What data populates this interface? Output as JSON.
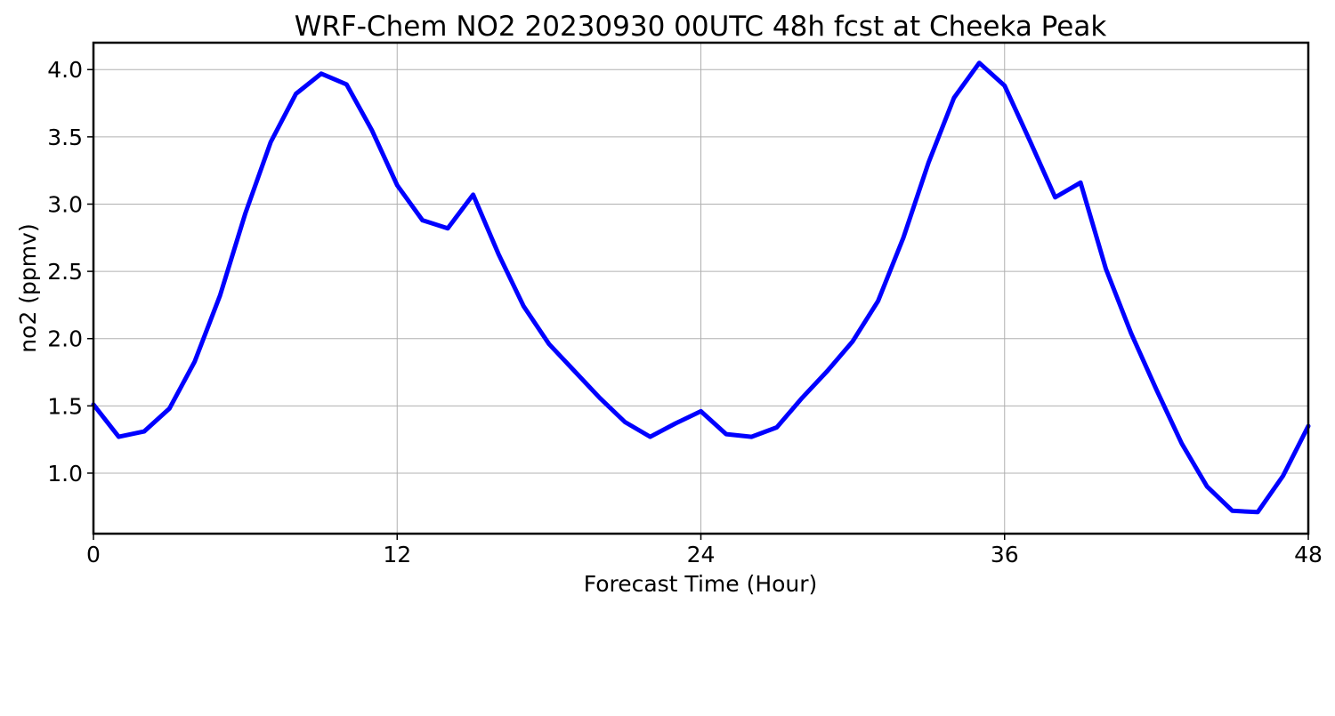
{
  "chart_data": {
    "type": "line",
    "title": "WRF-Chem NO2  20230930 00UTC 48h fcst at Cheeka Peak",
    "xlabel": "Forecast Time (Hour)",
    "ylabel": "no2  (ppmv)",
    "xlim": [
      0,
      48
    ],
    "ylim": [
      0.55,
      4.2
    ],
    "xticks": [
      0,
      12,
      24,
      36,
      48
    ],
    "xtick_labels": [
      "0",
      "12",
      "24",
      "36",
      "48"
    ],
    "yticks": [
      1.0,
      1.5,
      2.0,
      2.5,
      3.0,
      3.5,
      4.0
    ],
    "ytick_labels": [
      "1.0",
      "1.5",
      "2.0",
      "2.5",
      "3.0",
      "3.5",
      "4.0"
    ],
    "grid": true,
    "line_color": "#0000ff",
    "x": [
      0,
      1,
      2,
      3,
      4,
      5,
      6,
      7,
      8,
      9,
      10,
      11,
      12,
      13,
      14,
      15,
      16,
      17,
      18,
      19,
      20,
      21,
      22,
      23,
      24,
      25,
      26,
      27,
      28,
      29,
      30,
      31,
      32,
      33,
      34,
      35,
      36,
      37,
      38,
      39,
      40,
      41,
      42,
      43,
      44,
      45,
      46,
      47,
      48
    ],
    "values": [
      1.51,
      1.27,
      1.31,
      1.48,
      1.83,
      2.32,
      2.93,
      3.46,
      3.82,
      3.97,
      3.89,
      3.55,
      3.14,
      2.88,
      2.82,
      3.07,
      2.63,
      2.24,
      1.96,
      1.76,
      1.56,
      1.38,
      1.27,
      1.37,
      1.46,
      1.29,
      1.27,
      1.34,
      1.56,
      1.76,
      1.98,
      2.28,
      2.75,
      3.31,
      3.79,
      4.05,
      3.88,
      3.47,
      3.05,
      3.16,
      2.52,
      2.04,
      1.62,
      1.22,
      0.9,
      0.72,
      0.71,
      0.98,
      1.35
    ]
  }
}
